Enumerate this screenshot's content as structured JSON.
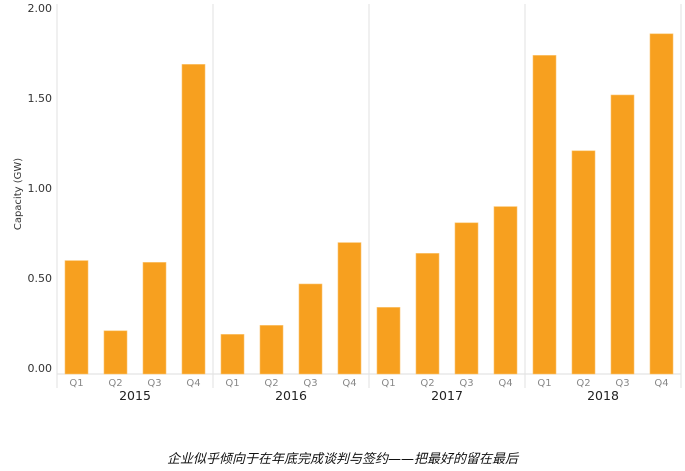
{
  "chart_data": {
    "type": "bar",
    "title": "",
    "xlabel": "",
    "ylabel": "Capacity (GW)",
    "ylim": [
      0,
      2
    ],
    "yticks": [
      "0.00",
      "0.50",
      "1.00",
      "1.50",
      "2.00"
    ],
    "grid": false,
    "color": "#F7A01F",
    "groups": [
      {
        "year": "2015",
        "quarters": [
          "Q1",
          "Q2",
          "Q3",
          "Q4"
        ],
        "values": [
          0.63,
          0.24,
          0.62,
          1.72
        ]
      },
      {
        "year": "2016",
        "quarters": [
          "Q1",
          "Q2",
          "Q3",
          "Q4"
        ],
        "values": [
          0.22,
          0.27,
          0.5,
          0.73
        ]
      },
      {
        "year": "2017",
        "quarters": [
          "Q1",
          "Q2",
          "Q3",
          "Q4"
        ],
        "values": [
          0.37,
          0.67,
          0.84,
          0.93
        ]
      },
      {
        "year": "2018",
        "quarters": [
          "Q1",
          "Q2",
          "Q3",
          "Q4"
        ],
        "values": [
          1.77,
          1.24,
          1.55,
          1.89
        ]
      }
    ]
  },
  "caption": "企业似乎倾向于在年底完成谈判与签约——把最好的留在最后"
}
